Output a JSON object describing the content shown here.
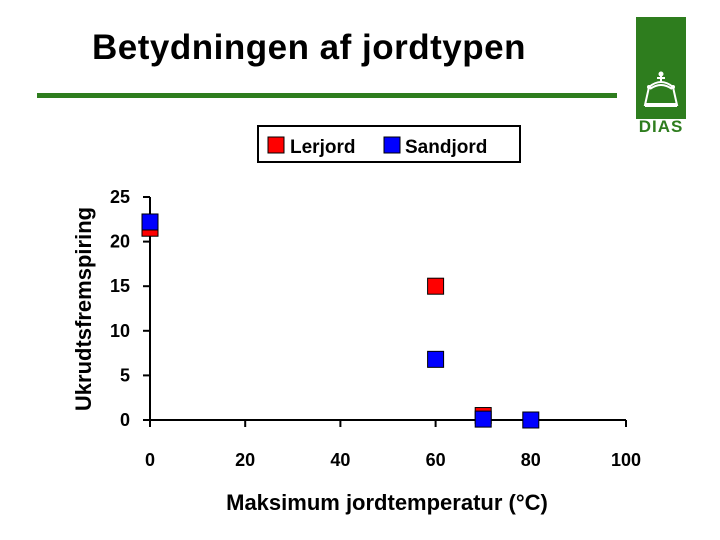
{
  "slide": {
    "title": "Betydningen af jordtypen",
    "logo_text": "DIAS"
  },
  "colors": {
    "accent_green": "#2e7d1e",
    "lerjord": "#ff0000",
    "sandjord": "#0000ff"
  },
  "chart_data": {
    "type": "scatter",
    "title": "",
    "xlabel": "Maksimum jordtemperatur (°C)",
    "ylabel": "Ukrudtsfremspiring",
    "xlim": [
      0,
      100
    ],
    "ylim": [
      0,
      25
    ],
    "xticks": [
      0,
      20,
      40,
      60,
      80,
      100
    ],
    "yticks": [
      0,
      5,
      10,
      15,
      20,
      25
    ],
    "grid": false,
    "legend_position": "top",
    "series": [
      {
        "name": "Lerjord",
        "color": "#ff0000",
        "points": [
          {
            "x": 0,
            "y": 21.5
          },
          {
            "x": 60,
            "y": 15
          },
          {
            "x": 70,
            "y": 0.5
          }
        ]
      },
      {
        "name": "Sandjord",
        "color": "#0000ff",
        "points": [
          {
            "x": 0,
            "y": 22.2
          },
          {
            "x": 60,
            "y": 6.8
          },
          {
            "x": 70,
            "y": 0.1
          },
          {
            "x": 80,
            "y": 0
          }
        ]
      }
    ]
  }
}
